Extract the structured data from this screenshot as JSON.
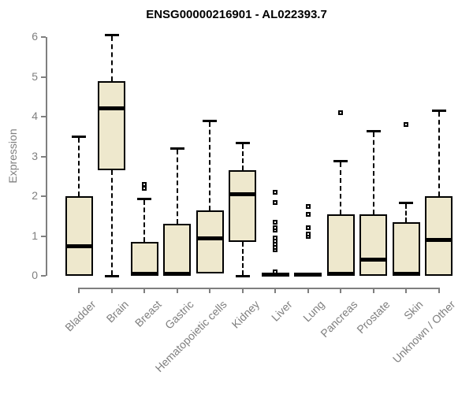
{
  "chart_data": {
    "type": "boxplot",
    "title": "ENSG00000216901 - AL022393.7",
    "ylabel": "Expression",
    "xlabel": "",
    "ylim": [
      0,
      6.2
    ],
    "yticks": [
      0,
      1,
      2,
      3,
      4,
      5,
      6
    ],
    "grid": false,
    "legend": "none",
    "categories": [
      "Bladder",
      "Brain",
      "Breast",
      "Gastric",
      "Hematopoietic cells",
      "Kidney",
      "Liver",
      "Lung",
      "Pancreas",
      "Prostate",
      "Skin",
      "Unknown / Other"
    ],
    "series": [
      {
        "category": "Bladder",
        "whisker_low": 0,
        "q1": 0,
        "median": 0.75,
        "q3": 2.0,
        "whisker_high": 3.5,
        "outliers": []
      },
      {
        "category": "Brain",
        "whisker_low": 0,
        "q1": 2.65,
        "median": 4.2,
        "q3": 4.9,
        "whisker_high": 6.05,
        "outliers": []
      },
      {
        "category": "Breast",
        "whisker_low": 0,
        "q1": 0,
        "median": 0.05,
        "q3": 0.85,
        "whisker_high": 1.95,
        "outliers": [
          2.2,
          2.3
        ]
      },
      {
        "category": "Gastric",
        "whisker_low": 0,
        "q1": 0,
        "median": 0.05,
        "q3": 1.3,
        "whisker_high": 3.2,
        "outliers": []
      },
      {
        "category": "Hematopoietic cells",
        "whisker_low": 0.05,
        "q1": 0.05,
        "median": 0.95,
        "q3": 1.65,
        "whisker_high": 3.9,
        "outliers": []
      },
      {
        "category": "Kidney",
        "whisker_low": 0,
        "q1": 0.85,
        "median": 2.05,
        "q3": 2.65,
        "whisker_high": 3.35,
        "outliers": []
      },
      {
        "category": "Liver",
        "whisker_low": 0,
        "q1": 0,
        "median": 0.02,
        "q3": 0.05,
        "whisker_high": 0.05,
        "outliers": [
          0.1,
          0.65,
          0.72,
          0.8,
          0.88,
          0.95,
          1.15,
          1.2,
          1.35,
          1.85,
          2.1
        ]
      },
      {
        "category": "Lung",
        "whisker_low": 0,
        "q1": 0,
        "median": 0.02,
        "q3": 0.05,
        "whisker_high": 0.05,
        "outliers": [
          1.0,
          1.05,
          1.2,
          1.55,
          1.75
        ]
      },
      {
        "category": "Pancreas",
        "whisker_low": 0,
        "q1": 0,
        "median": 0.05,
        "q3": 1.55,
        "whisker_high": 2.9,
        "outliers": [
          4.1
        ]
      },
      {
        "category": "Prostate",
        "whisker_low": 0,
        "q1": 0,
        "median": 0.4,
        "q3": 1.55,
        "whisker_high": 3.65,
        "outliers": []
      },
      {
        "category": "Skin",
        "whisker_low": 0,
        "q1": 0,
        "median": 0.05,
        "q3": 1.35,
        "whisker_high": 1.85,
        "outliers": [
          3.8
        ]
      },
      {
        "category": "Unknown / Other",
        "whisker_low": 0,
        "q1": 0,
        "median": 0.9,
        "q3": 2.0,
        "whisker_high": 4.15,
        "outliers": []
      }
    ],
    "colors": {
      "box_fill": "#EEE8CD",
      "box_stroke": "#000000",
      "median": "#000000",
      "axis": "#7F7F7F",
      "title": "#000000",
      "background": "#FFFFFF"
    }
  }
}
